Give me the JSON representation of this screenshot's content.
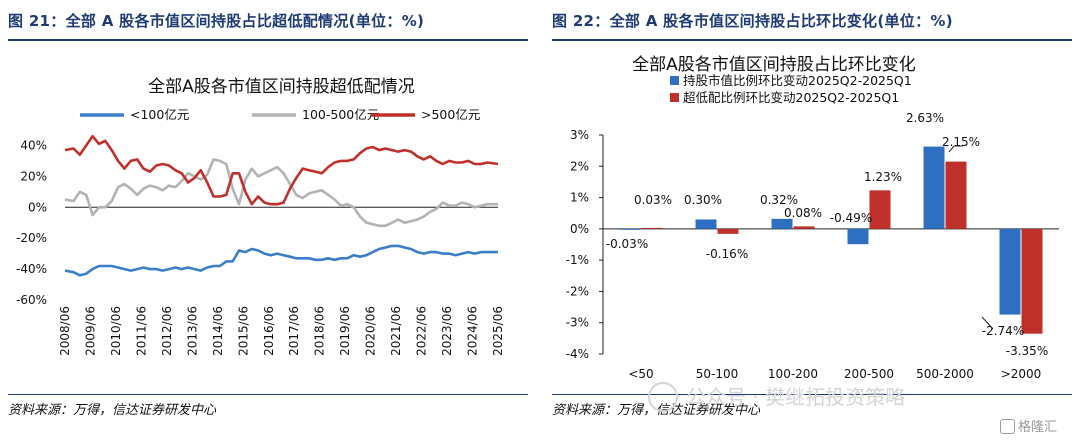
{
  "left": {
    "figure_title": "图 21：全部 A 股各市值区间持股占比超低配情况(单位：%)",
    "source": "资料来源：万得，信达证券研发中心"
  },
  "right": {
    "figure_title": "图 22：全部 A 股各市值区间持股占比环比变化(单位：%)",
    "source": "资料来源：万得，信达证券研发中心"
  },
  "watermark": "公众号 · 樊继拓投资策略",
  "brand": "格隆汇",
  "colors": {
    "blue": "#3a7dc9",
    "gray": "#b3b3b3",
    "red": "#c0302b",
    "bar_blue": "#2f6fc2",
    "bar_red": "#c0302b",
    "title_navy": "#1f3b73"
  },
  "chart_data": [
    {
      "type": "line",
      "title": "全部A股各市值区间持股超低配情况",
      "x_tick_labels": [
        "2008/06",
        "2009/06",
        "2010/06",
        "2011/06",
        "2012/06",
        "2013/06",
        "2014/06",
        "2015/06",
        "2016/06",
        "2017/06",
        "2018/06",
        "2019/06",
        "2020/06",
        "2021/06",
        "2022/06",
        "2023/06",
        "2024/06",
        "2025/06"
      ],
      "y_tick_labels": [
        "40%",
        "20%",
        "0%",
        "-20%",
        "-40%",
        "-60%"
      ],
      "y_ticks": [
        40,
        20,
        0,
        -20,
        -40,
        -60
      ],
      "ylim": [
        -60,
        50
      ],
      "x_start": 2008.417,
      "x_end": 2025.417,
      "legend_position": "top",
      "series": [
        {
          "name": "<100亿元",
          "color": "#3a7dc9",
          "points": [
            [
              2008.417,
              -41
            ],
            [
              2008.75,
              -42
            ],
            [
              2009.0,
              -44
            ],
            [
              2009.25,
              -43
            ],
            [
              2009.5,
              -40
            ],
            [
              2009.75,
              -38
            ],
            [
              2010.0,
              -38
            ],
            [
              2010.25,
              -38
            ],
            [
              2010.5,
              -39
            ],
            [
              2010.75,
              -40
            ],
            [
              2011.0,
              -41
            ],
            [
              2011.25,
              -40
            ],
            [
              2011.5,
              -39
            ],
            [
              2011.75,
              -40
            ],
            [
              2012.0,
              -40
            ],
            [
              2012.25,
              -41
            ],
            [
              2012.5,
              -40
            ],
            [
              2012.75,
              -39
            ],
            [
              2013.0,
              -40
            ],
            [
              2013.25,
              -39
            ],
            [
              2013.5,
              -40
            ],
            [
              2013.75,
              -41
            ],
            [
              2014.0,
              -39
            ],
            [
              2014.25,
              -38
            ],
            [
              2014.5,
              -38
            ],
            [
              2014.75,
              -35
            ],
            [
              2015.0,
              -35
            ],
            [
              2015.25,
              -28
            ],
            [
              2015.5,
              -29
            ],
            [
              2015.75,
              -27
            ],
            [
              2016.0,
              -28
            ],
            [
              2016.25,
              -30
            ],
            [
              2016.5,
              -31
            ],
            [
              2016.75,
              -30
            ],
            [
              2017.0,
              -31
            ],
            [
              2017.25,
              -32
            ],
            [
              2017.5,
              -33
            ],
            [
              2017.75,
              -33
            ],
            [
              2018.0,
              -33
            ],
            [
              2018.25,
              -34
            ],
            [
              2018.5,
              -34
            ],
            [
              2018.75,
              -33
            ],
            [
              2019.0,
              -34
            ],
            [
              2019.25,
              -33
            ],
            [
              2019.5,
              -33
            ],
            [
              2019.75,
              -31
            ],
            [
              2020.0,
              -32
            ],
            [
              2020.25,
              -31
            ],
            [
              2020.5,
              -29
            ],
            [
              2020.75,
              -27
            ],
            [
              2021.0,
              -26
            ],
            [
              2021.25,
              -25
            ],
            [
              2021.5,
              -25
            ],
            [
              2021.75,
              -26
            ],
            [
              2022.0,
              -27
            ],
            [
              2022.25,
              -29
            ],
            [
              2022.5,
              -30
            ],
            [
              2022.75,
              -29
            ],
            [
              2023.0,
              -29
            ],
            [
              2023.25,
              -30
            ],
            [
              2023.5,
              -30
            ],
            [
              2023.75,
              -31
            ],
            [
              2024.0,
              -30
            ],
            [
              2024.25,
              -29
            ],
            [
              2024.5,
              -30
            ],
            [
              2024.75,
              -29
            ],
            [
              2025.0,
              -29
            ],
            [
              2025.417,
              -29
            ]
          ]
        },
        {
          "name": "100-500亿元",
          "color": "#b3b3b3",
          "points": [
            [
              2008.417,
              5
            ],
            [
              2008.75,
              4
            ],
            [
              2009.0,
              10
            ],
            [
              2009.25,
              8
            ],
            [
              2009.5,
              -5
            ],
            [
              2009.75,
              0
            ],
            [
              2010.0,
              0
            ],
            [
              2010.25,
              4
            ],
            [
              2010.5,
              13
            ],
            [
              2010.75,
              15
            ],
            [
              2011.0,
              12
            ],
            [
              2011.25,
              8
            ],
            [
              2011.5,
              12
            ],
            [
              2011.75,
              14
            ],
            [
              2012.0,
              13
            ],
            [
              2012.25,
              11
            ],
            [
              2012.5,
              14
            ],
            [
              2012.75,
              13
            ],
            [
              2013.0,
              17
            ],
            [
              2013.25,
              22
            ],
            [
              2013.5,
              20
            ],
            [
              2013.75,
              18
            ],
            [
              2014.0,
              21
            ],
            [
              2014.25,
              31
            ],
            [
              2014.5,
              30
            ],
            [
              2014.75,
              28
            ],
            [
              2015.0,
              12
            ],
            [
              2015.25,
              2
            ],
            [
              2015.5,
              18
            ],
            [
              2015.75,
              25
            ],
            [
              2016.0,
              20
            ],
            [
              2016.25,
              22
            ],
            [
              2016.5,
              24
            ],
            [
              2016.75,
              26
            ],
            [
              2017.0,
              22
            ],
            [
              2017.25,
              15
            ],
            [
              2017.5,
              8
            ],
            [
              2017.75,
              6
            ],
            [
              2018.0,
              9
            ],
            [
              2018.25,
              10
            ],
            [
              2018.5,
              11
            ],
            [
              2018.75,
              8
            ],
            [
              2019.0,
              5
            ],
            [
              2019.25,
              1
            ],
            [
              2019.5,
              2
            ],
            [
              2019.75,
              0
            ],
            [
              2020.0,
              -6
            ],
            [
              2020.25,
              -10
            ],
            [
              2020.5,
              -11
            ],
            [
              2020.75,
              -12
            ],
            [
              2021.0,
              -12
            ],
            [
              2021.25,
              -10
            ],
            [
              2021.5,
              -8
            ],
            [
              2021.75,
              -10
            ],
            [
              2022.0,
              -9
            ],
            [
              2022.25,
              -8
            ],
            [
              2022.5,
              -6
            ],
            [
              2022.75,
              -3
            ],
            [
              2023.0,
              -1
            ],
            [
              2023.25,
              3
            ],
            [
              2023.5,
              1
            ],
            [
              2023.75,
              1
            ],
            [
              2024.0,
              3
            ],
            [
              2024.25,
              2
            ],
            [
              2024.5,
              0
            ],
            [
              2024.75,
              1
            ],
            [
              2025.0,
              2
            ],
            [
              2025.417,
              2
            ]
          ]
        },
        {
          "name": ">500亿元",
          "color": "#c0302b",
          "points": [
            [
              2008.417,
              37
            ],
            [
              2008.75,
              38
            ],
            [
              2009.0,
              34
            ],
            [
              2009.25,
              40
            ],
            [
              2009.5,
              46
            ],
            [
              2009.75,
              41
            ],
            [
              2010.0,
              43
            ],
            [
              2010.25,
              37
            ],
            [
              2010.5,
              30
            ],
            [
              2010.75,
              25
            ],
            [
              2011.0,
              30
            ],
            [
              2011.25,
              31
            ],
            [
              2011.5,
              25
            ],
            [
              2011.75,
              23
            ],
            [
              2012.0,
              27
            ],
            [
              2012.25,
              28
            ],
            [
              2012.5,
              27
            ],
            [
              2012.75,
              24
            ],
            [
              2013.0,
              22
            ],
            [
              2013.25,
              16
            ],
            [
              2013.5,
              19
            ],
            [
              2013.75,
              24
            ],
            [
              2014.0,
              16
            ],
            [
              2014.25,
              7
            ],
            [
              2014.5,
              7
            ],
            [
              2014.75,
              8
            ],
            [
              2015.0,
              22
            ],
            [
              2015.25,
              22
            ],
            [
              2015.5,
              10
            ],
            [
              2015.75,
              2
            ],
            [
              2016.0,
              7
            ],
            [
              2016.25,
              3
            ],
            [
              2016.5,
              2
            ],
            [
              2016.75,
              2
            ],
            [
              2017.0,
              3
            ],
            [
              2017.25,
              12
            ],
            [
              2017.5,
              19
            ],
            [
              2017.75,
              25
            ],
            [
              2018.0,
              24
            ],
            [
              2018.25,
              23
            ],
            [
              2018.5,
              22
            ],
            [
              2018.75,
              26
            ],
            [
              2019.0,
              29
            ],
            [
              2019.25,
              30
            ],
            [
              2019.5,
              30
            ],
            [
              2019.75,
              31
            ],
            [
              2020.0,
              35
            ],
            [
              2020.25,
              38
            ],
            [
              2020.5,
              39
            ],
            [
              2020.75,
              37
            ],
            [
              2021.0,
              38
            ],
            [
              2021.25,
              37
            ],
            [
              2021.5,
              36
            ],
            [
              2021.75,
              37
            ],
            [
              2022.0,
              36
            ],
            [
              2022.25,
              33
            ],
            [
              2022.5,
              31
            ],
            [
              2022.75,
              33
            ],
            [
              2023.0,
              30
            ],
            [
              2023.25,
              28
            ],
            [
              2023.5,
              30
            ],
            [
              2023.75,
              29
            ],
            [
              2024.0,
              29
            ],
            [
              2024.25,
              30
            ],
            [
              2024.5,
              28
            ],
            [
              2024.75,
              28
            ],
            [
              2025.0,
              29
            ],
            [
              2025.417,
              28
            ]
          ]
        }
      ]
    },
    {
      "type": "bar",
      "title": "全部A股各市值区间持股占比环比变化",
      "categories": [
        "<50",
        "50-100",
        "100-200",
        "200-500",
        "500-2000",
        ">2000"
      ],
      "y_tick_labels": [
        "3%",
        "2%",
        "1%",
        "0%",
        "-1%",
        "-2%",
        "-3%",
        "-4%"
      ],
      "y_ticks": [
        3,
        2,
        1,
        0,
        -1,
        -2,
        -3,
        -4
      ],
      "ylim": [
        -4,
        3
      ],
      "legend_position": "top-left",
      "series": [
        {
          "name": "持股市值比例环比变动2025Q2-2025Q1",
          "color": "#2f6fc2",
          "values": [
            -0.03,
            0.3,
            0.32,
            -0.49,
            2.63,
            -2.74
          ],
          "labels": [
            "-0.03%",
            "0.30%",
            "0.32%",
            "-0.49%",
            "2.63%",
            "-2.74%"
          ]
        },
        {
          "name": "超低配比例环比变动2025Q2-2025Q1",
          "color": "#c0302b",
          "values": [
            0.03,
            -0.16,
            0.08,
            1.23,
            2.15,
            -3.35
          ],
          "labels": [
            "0.03%",
            "-0.16%",
            "0.08%",
            "1.23%",
            "2.15%",
            "-3.35%"
          ]
        }
      ]
    }
  ]
}
